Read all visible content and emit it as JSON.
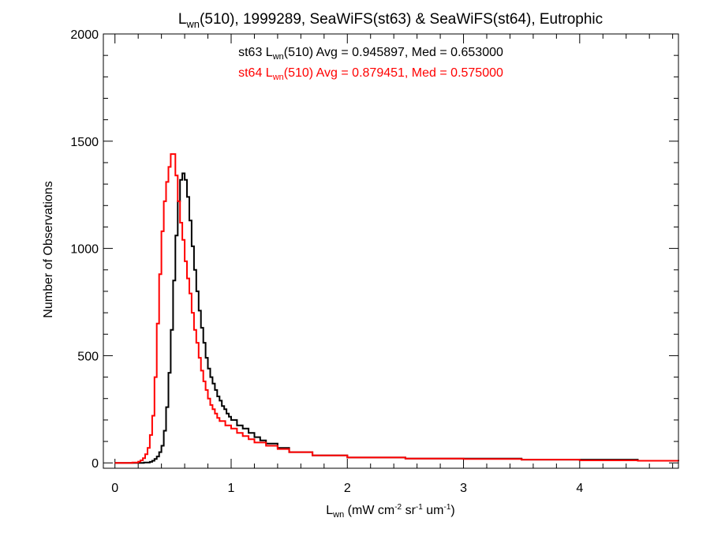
{
  "chart_data": {
    "type": "line",
    "style": "step-histogram",
    "title_main": "L",
    "title_sub": "wn",
    "title_rest": "(510), 1999289, SeaWiFS(st63) & SeaWiFS(st64), Eutrophic",
    "xlabel": {
      "main": "L",
      "sub": "wn",
      "part1": " (mW cm",
      "sup1": "-2",
      "part2": " sr",
      "sup2": "-1",
      "part3": " um",
      "sup3": "-1",
      "part4": ")"
    },
    "ylabel": "Number of Observations",
    "xlim": [
      -0.1,
      4.85
    ],
    "ylim": [
      -25,
      2000
    ],
    "xticks": [
      "0",
      "1",
      "2",
      "3",
      "4"
    ],
    "yticks": [
      "0",
      "500",
      "1000",
      "1500",
      "2000"
    ],
    "grid": false,
    "legend": [
      {
        "prefix": "st63 L",
        "sub": "wn",
        "suffix": "(510) Avg = 0.945897, Med = 0.653000",
        "color": "#000000"
      },
      {
        "prefix": "st64 L",
        "sub": "wn",
        "suffix": "(510) Avg = 0.879451, Med = 0.575000",
        "color": "#ff0000"
      }
    ],
    "series": [
      {
        "color": "#000000",
        "x": [
          0.0,
          0.1,
          0.2,
          0.25,
          0.3,
          0.32,
          0.34,
          0.36,
          0.38,
          0.4,
          0.42,
          0.44,
          0.46,
          0.48,
          0.5,
          0.52,
          0.54,
          0.56,
          0.58,
          0.6,
          0.62,
          0.64,
          0.66,
          0.68,
          0.7,
          0.72,
          0.74,
          0.76,
          0.78,
          0.8,
          0.82,
          0.84,
          0.86,
          0.88,
          0.9,
          0.92,
          0.94,
          0.96,
          0.98,
          1.0,
          1.05,
          1.1,
          1.15,
          1.2,
          1.25,
          1.3,
          1.4,
          1.5,
          1.7,
          2.0,
          2.5,
          3.0,
          3.5,
          4.0,
          4.5,
          4.85
        ],
        "y": [
          0,
          0,
          0,
          2,
          5,
          10,
          18,
          30,
          50,
          80,
          150,
          260,
          420,
          620,
          850,
          1060,
          1220,
          1320,
          1350,
          1320,
          1240,
          1130,
          1010,
          900,
          800,
          710,
          630,
          560,
          490,
          440,
          400,
          370,
          340,
          310,
          290,
          265,
          250,
          230,
          215,
          200,
          175,
          160,
          140,
          120,
          105,
          90,
          70,
          50,
          35,
          25,
          20,
          20,
          15,
          15,
          10,
          8
        ]
      },
      {
        "color": "#ff0000",
        "x": [
          0.0,
          0.1,
          0.15,
          0.2,
          0.22,
          0.24,
          0.26,
          0.28,
          0.3,
          0.32,
          0.34,
          0.36,
          0.38,
          0.4,
          0.42,
          0.44,
          0.46,
          0.48,
          0.5,
          0.52,
          0.54,
          0.56,
          0.58,
          0.6,
          0.62,
          0.64,
          0.66,
          0.68,
          0.7,
          0.72,
          0.74,
          0.76,
          0.78,
          0.8,
          0.82,
          0.84,
          0.86,
          0.88,
          0.9,
          0.95,
          1.0,
          1.05,
          1.1,
          1.15,
          1.2,
          1.3,
          1.4,
          1.5,
          1.7,
          2.0,
          2.5,
          3.0,
          3.5,
          4.0,
          4.5,
          4.85
        ],
        "y": [
          0,
          0,
          2,
          6,
          12,
          22,
          40,
          70,
          130,
          220,
          400,
          650,
          880,
          1080,
          1220,
          1310,
          1380,
          1440,
          1440,
          1340,
          1220,
          1120,
          1040,
          940,
          860,
          790,
          700,
          620,
          560,
          490,
          430,
          380,
          340,
          300,
          270,
          250,
          230,
          210,
          195,
          175,
          160,
          140,
          125,
          110,
          95,
          80,
          65,
          50,
          35,
          25,
          20,
          18,
          15,
          12,
          10,
          8
        ]
      }
    ]
  }
}
